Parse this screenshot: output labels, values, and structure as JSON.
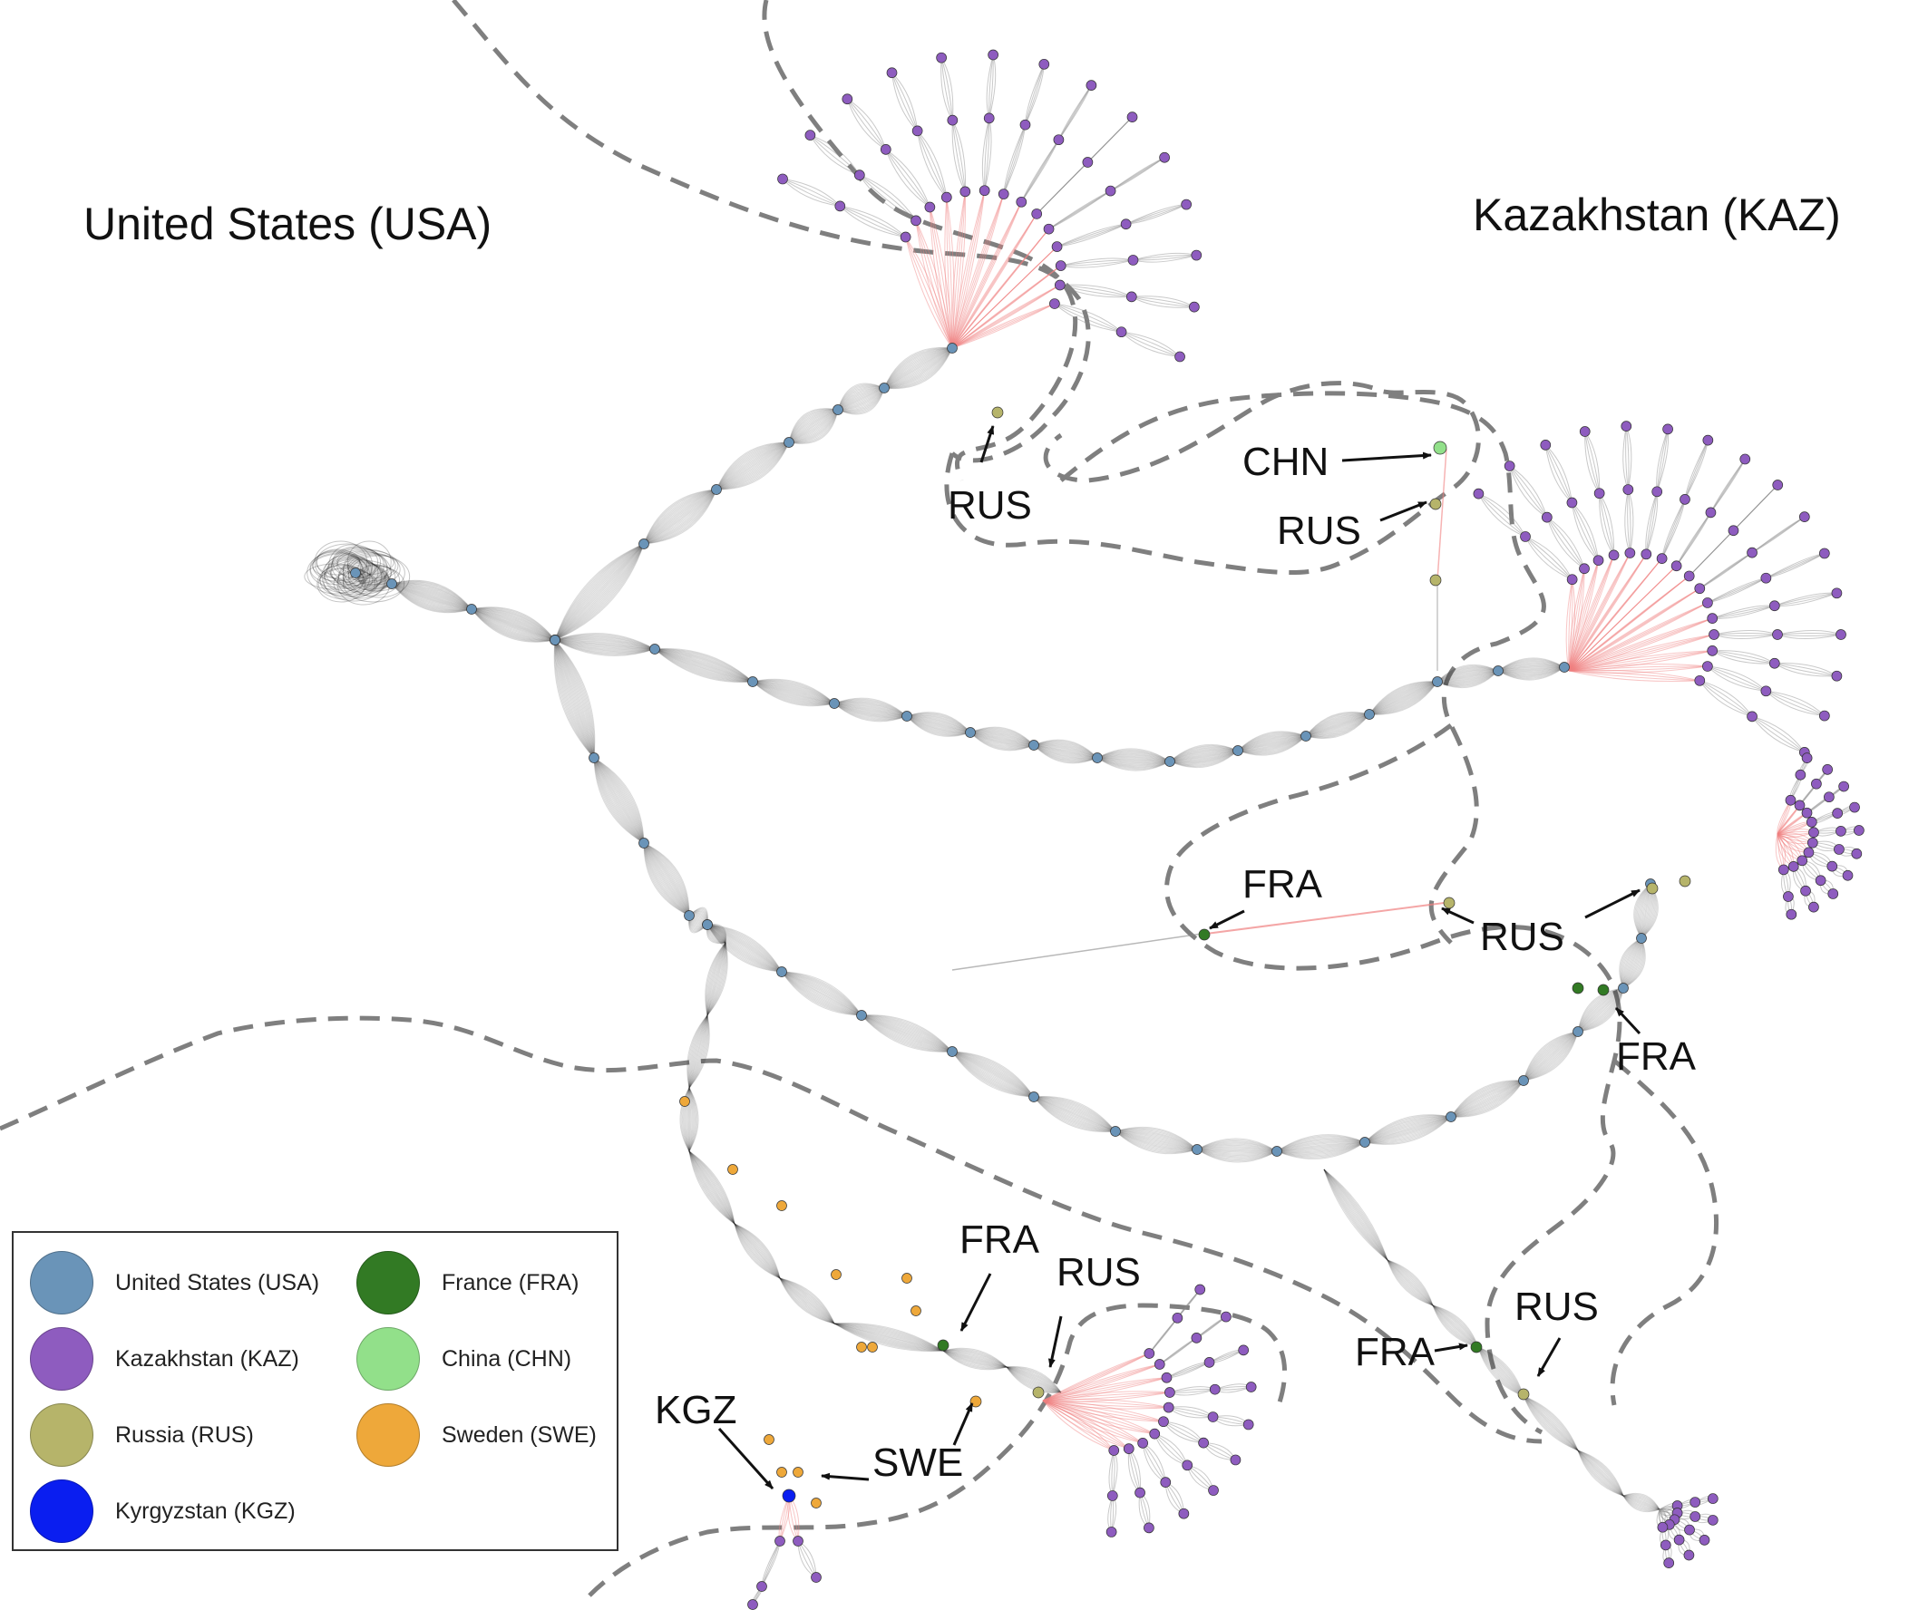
{
  "regions": {
    "usa_title": "United States (USA)",
    "kaz_title": "Kazakhstan (KAZ)"
  },
  "colors": {
    "usa": "#6a94b8",
    "kaz": "#8e5cbf",
    "rus": "#b6b46a",
    "kgz": "#0a1ef0",
    "fra": "#327a24",
    "chn": "#92e08a",
    "swe": "#eea83a",
    "edge": "#1a1a1a",
    "cross_edge": "#f08080",
    "boundary": "#7f7f7f"
  },
  "annotations": [
    {
      "id": "rus-top",
      "text": "RUS"
    },
    {
      "id": "chn",
      "text": "CHN"
    },
    {
      "id": "rus-chn",
      "text": "RUS"
    },
    {
      "id": "fra-mid",
      "text": "FRA"
    },
    {
      "id": "rus-mid",
      "text": "RUS"
    },
    {
      "id": "fra-right",
      "text": "FRA"
    },
    {
      "id": "fra-bl",
      "text": "FRA"
    },
    {
      "id": "rus-bl",
      "text": "RUS"
    },
    {
      "id": "kgz",
      "text": "KGZ"
    },
    {
      "id": "swe",
      "text": "SWE"
    },
    {
      "id": "fra-br",
      "text": "FRA"
    },
    {
      "id": "rus-br",
      "text": "RUS"
    }
  ],
  "legend": {
    "items": [
      {
        "label": "United States (USA)",
        "color": "#6a94b8"
      },
      {
        "label": "Kazakhstan (KAZ)",
        "color": "#8e5cbf"
      },
      {
        "label": "Russia (RUS)",
        "color": "#b6b46a"
      },
      {
        "label": "Kyrgyzstan (KGZ)",
        "color": "#0a1ef0"
      },
      {
        "label": "France (FRA)",
        "color": "#327a24"
      },
      {
        "label": "China (CHN)",
        "color": "#92e08a"
      },
      {
        "label": "Sweden (SWE)",
        "color": "#eea83a"
      }
    ]
  }
}
